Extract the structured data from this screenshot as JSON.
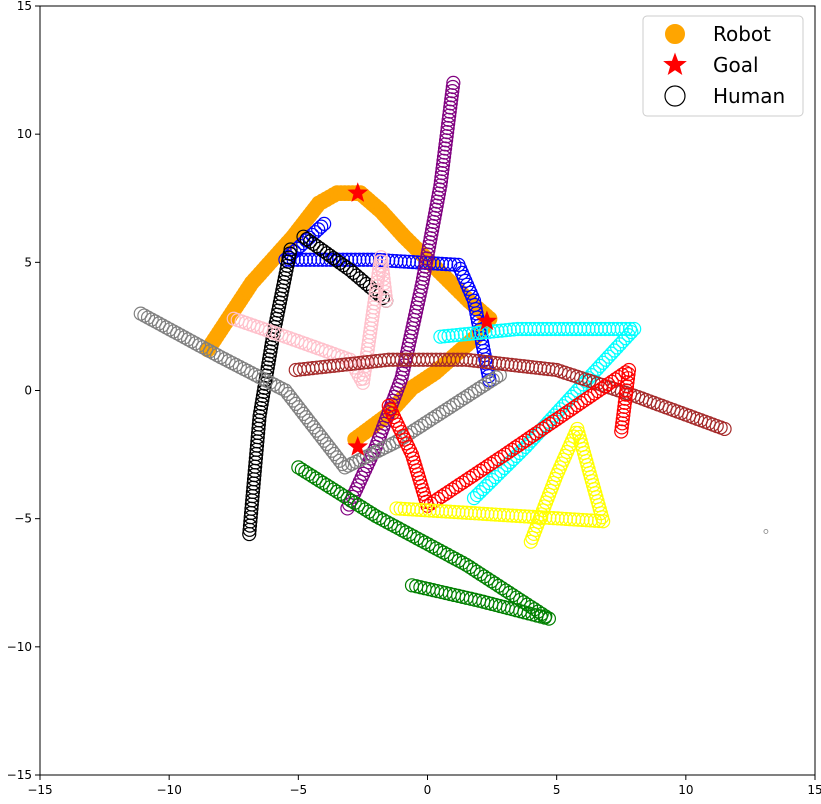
{
  "chart_data": {
    "type": "scatter",
    "title": "",
    "xlabel": "",
    "ylabel": "",
    "xlim": [
      -15,
      15
    ],
    "ylim": [
      -15,
      15
    ],
    "xticks": [
      -15,
      -10,
      -5,
      0,
      5,
      10,
      15
    ],
    "yticks": [
      -15,
      -10,
      -5,
      0,
      5,
      10,
      15
    ],
    "xtick_labels": [
      "−15",
      "−10",
      "−5",
      "0",
      "5",
      "10",
      "15"
    ],
    "ytick_labels": [
      "−15",
      "−10",
      "−5",
      "0",
      "5",
      "10",
      "15"
    ],
    "grid": false,
    "legend_position": "top-right",
    "legend": [
      {
        "label": "Robot",
        "marker": "filled-circle",
        "color": "#ffa500"
      },
      {
        "label": "Goal",
        "marker": "star",
        "color": "#ff0000"
      },
      {
        "label": "Human",
        "marker": "hollow-circle",
        "color": "#000000"
      }
    ],
    "robot": {
      "color": "#ffa500",
      "path": [
        [
          -8.5,
          1.6
        ],
        [
          -6.8,
          4.2
        ],
        [
          -5.2,
          6.0
        ],
        [
          -4.2,
          7.3
        ],
        [
          -3.5,
          7.7
        ],
        [
          -2.6,
          7.7
        ],
        [
          -1.8,
          7.0
        ],
        [
          -0.9,
          6.0
        ],
        [
          0.0,
          5.1
        ],
        [
          0.8,
          4.3
        ],
        [
          1.6,
          3.5
        ],
        [
          2.4,
          2.8
        ],
        [
          2.0,
          2.2
        ],
        [
          1.2,
          1.5
        ],
        [
          0.3,
          0.7
        ],
        [
          -0.6,
          0.1
        ],
        [
          -1.6,
          -1.0
        ],
        [
          -2.8,
          -1.9
        ]
      ]
    },
    "goals": [
      [
        -2.7,
        7.7
      ],
      [
        2.3,
        2.7
      ],
      [
        -2.7,
        -2.2
      ]
    ],
    "humans": [
      {
        "color": "#0000ff",
        "path": [
          [
            -4.0,
            6.5
          ],
          [
            -5.5,
            5.1
          ],
          [
            -2.0,
            5.1
          ],
          [
            1.2,
            4.9
          ],
          [
            1.8,
            3.5
          ],
          [
            2.4,
            0.4
          ]
        ]
      },
      {
        "color": "#800080",
        "path": [
          [
            1.0,
            12.0
          ],
          [
            0.5,
            8.0
          ],
          [
            -0.2,
            4.2
          ],
          [
            -1.0,
            0.5
          ],
          [
            -2.0,
            -2.2
          ],
          [
            -3.1,
            -4.6
          ]
        ]
      },
      {
        "color": "#000000",
        "path": [
          [
            -4.8,
            6.0
          ],
          [
            -3.0,
            4.7
          ],
          [
            -1.6,
            3.5
          ]
        ]
      },
      {
        "color": "#000000",
        "path": [
          [
            -5.3,
            5.5
          ],
          [
            -6.0,
            2.0
          ],
          [
            -6.5,
            -1.0
          ],
          [
            -6.9,
            -5.6
          ]
        ]
      },
      {
        "color": "#ffc0cb",
        "path": [
          [
            -7.5,
            2.8
          ],
          [
            -5.5,
            2.1
          ],
          [
            -3.0,
            1.2
          ],
          [
            -2.5,
            0.3
          ],
          [
            -1.8,
            5.2
          ],
          [
            -1.6,
            3.5
          ]
        ]
      },
      {
        "color": "#808080",
        "path": [
          [
            -11.1,
            3.0
          ],
          [
            -8.0,
            1.3
          ],
          [
            -5.5,
            0.0
          ],
          [
            -3.2,
            -3.0
          ],
          [
            -1.2,
            -2.0
          ],
          [
            2.8,
            0.6
          ]
        ]
      },
      {
        "color": "#00ffff",
        "path": [
          [
            0.5,
            2.1
          ],
          [
            3.5,
            2.4
          ],
          [
            8.0,
            2.4
          ],
          [
            5.8,
            0.0
          ],
          [
            3.8,
            -2.2
          ],
          [
            1.8,
            -4.2
          ]
        ]
      },
      {
        "color": "#a52a2a",
        "path": [
          [
            -5.1,
            0.8
          ],
          [
            -1.5,
            1.2
          ],
          [
            1.5,
            1.2
          ],
          [
            5.0,
            0.8
          ],
          [
            8.0,
            -0.2
          ],
          [
            11.5,
            -1.5
          ]
        ]
      },
      {
        "color": "#ff0000",
        "path": [
          [
            -1.5,
            -0.6
          ],
          [
            -0.6,
            -2.5
          ],
          [
            0.0,
            -4.5
          ],
          [
            3.0,
            -2.5
          ],
          [
            7.8,
            0.8
          ],
          [
            7.5,
            -1.6
          ]
        ]
      },
      {
        "color": "#ffff00",
        "path": [
          [
            -1.2,
            -4.6
          ],
          [
            2.0,
            -4.8
          ],
          [
            6.8,
            -5.1
          ],
          [
            5.8,
            -1.5
          ],
          [
            5.0,
            -3.3
          ],
          [
            4.0,
            -5.9
          ]
        ]
      },
      {
        "color": "#008000",
        "path": [
          [
            -5.0,
            -3.0
          ],
          [
            -2.0,
            -4.9
          ],
          [
            1.5,
            -6.8
          ],
          [
            4.7,
            -8.9
          ],
          [
            2.0,
            -8.2
          ],
          [
            -0.6,
            -7.6
          ]
        ]
      }
    ],
    "stray_marker": [
      13.1,
      -5.5
    ]
  }
}
